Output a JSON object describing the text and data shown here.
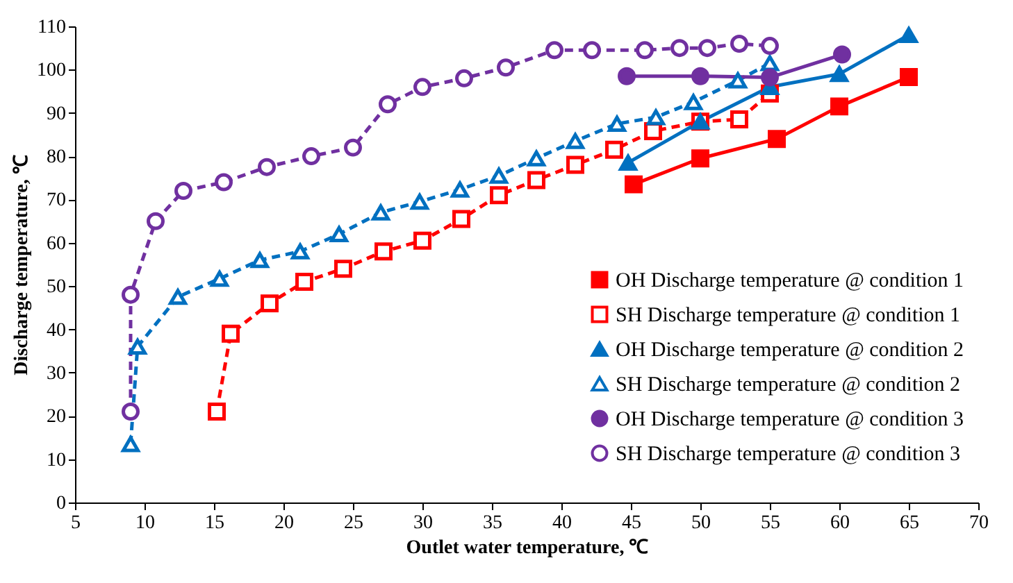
{
  "chart_data": {
    "type": "line",
    "xlabel": "Outlet water temperature, ℃",
    "ylabel": "Discharge temperature, ℃",
    "xlim": [
      5,
      70
    ],
    "xticks": [
      5,
      10,
      15,
      20,
      25,
      30,
      35,
      40,
      45,
      50,
      55,
      60,
      65,
      70
    ],
    "ylim": [
      0,
      110
    ],
    "yticks": [
      0,
      10,
      20,
      30,
      40,
      50,
      60,
      70,
      80,
      90,
      100,
      110
    ],
    "grid": false,
    "legend": "right",
    "series": [
      {
        "name": "OH Discharge temperature @ condition 1",
        "color": "#ff0000",
        "marker": "square",
        "line_style": "solid",
        "x": [
          45.2,
          50,
          55.5,
          60,
          65
        ],
        "values": [
          73.5,
          79.5,
          84,
          91.5,
          98.3
        ]
      },
      {
        "name": "SH Discharge temperature @ condition 1",
        "color": "#ff0000",
        "marker": "square",
        "line_style": "dashed",
        "x": [
          15.2,
          16.2,
          19,
          21.5,
          24.3,
          27.2,
          30,
          32.8,
          35.5,
          38.2,
          41,
          43.8,
          46.6,
          50,
          52.8,
          55
        ],
        "values": [
          21,
          39,
          46,
          51,
          54,
          58,
          60.5,
          65.5,
          71,
          74.5,
          78,
          81.5,
          85.8,
          88,
          88.5,
          94.5
        ]
      },
      {
        "name": "OH Discharge temperature @ condition 2",
        "color": "#0070c0",
        "marker": "triangle",
        "line_style": "solid",
        "x": [
          44.8,
          50,
          55,
          60,
          65
        ],
        "values": [
          78.5,
          88,
          96,
          99,
          108
        ]
      },
      {
        "name": "SH Discharge temperature @ condition 2",
        "color": "#0070c0",
        "marker": "triangle",
        "line_style": "dashed",
        "x": [
          9,
          9.5,
          12.4,
          15.4,
          18.3,
          21.2,
          24,
          27,
          29.8,
          32.7,
          35.5,
          38.2,
          41,
          44,
          46.8,
          49.5,
          52.7,
          55
        ],
        "values": [
          13.5,
          36,
          47.5,
          51.7,
          56,
          58,
          62,
          67,
          69.5,
          72.3,
          75.5,
          79.5,
          83.5,
          87.5,
          89,
          92.5,
          97.5,
          101.5
        ]
      },
      {
        "name": "OH Discharge temperature @ condition 3",
        "color": "#7030a0",
        "marker": "circle",
        "line_style": "solid",
        "x": [
          44.7,
          50,
          55,
          60.2
        ],
        "values": [
          98.5,
          98.5,
          98.2,
          103.5
        ]
      },
      {
        "name": "SH Discharge temperature @ condition 3",
        "color": "#7030a0",
        "marker": "circle",
        "line_style": "dashed",
        "x": [
          9,
          9,
          10.8,
          12.8,
          15.7,
          18.8,
          22,
          25,
          27.5,
          30,
          33,
          36,
          39.5,
          42.2,
          46,
          48.5,
          50.5,
          52.8,
          55
        ],
        "values": [
          21,
          48,
          65,
          72,
          74,
          77.5,
          80,
          82,
          92,
          96,
          98,
          100.5,
          104.5,
          104.5,
          104.5,
          105,
          105,
          106,
          105.5
        ]
      }
    ]
  }
}
